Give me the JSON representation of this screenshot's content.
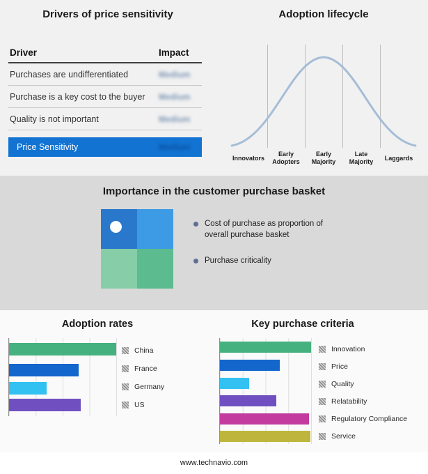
{
  "drivers_panel": {
    "title": "Drivers of price sensitivity",
    "table": {
      "headers": [
        "Driver",
        "Impact"
      ],
      "rows": [
        {
          "driver": "Purchases are undifferentiated",
          "impact": "Medium"
        },
        {
          "driver": "Purchase is a key cost to the buyer",
          "impact": "Medium"
        },
        {
          "driver": "Quality is not important",
          "impact": "Medium"
        }
      ],
      "highlight_row": {
        "driver": "Price Sensitivity",
        "impact": "Medium"
      },
      "highlight_color": "#1273d2",
      "impact_blurred": true
    }
  },
  "basket_panel": {
    "title": "Importance in the customer purchase basket",
    "bullets": [
      "Cost of purchase as proportion of overall purchase basket",
      "Purchase criticality"
    ],
    "quadrant_colors": [
      "#2a78cc",
      "#3d9be6",
      "#86cda8",
      "#5cbc90"
    ]
  },
  "chart_data": [
    {
      "type": "bar",
      "title": "Adoption rates",
      "orientation": "horizontal",
      "categories": [
        "China",
        "France",
        "Germany",
        "US"
      ],
      "values": [
        100,
        65,
        35,
        67
      ],
      "value_scale": "relative, percent of longest bar (no numeric axis labels shown)",
      "colors": [
        "#45b17e",
        "#1266cc",
        "#33c1f2",
        "#7050c0"
      ],
      "grid": true,
      "legend_position": "right"
    },
    {
      "type": "bar",
      "title": "Key purchase criteria",
      "orientation": "horizontal",
      "categories": [
        "Innovation",
        "Price",
        "Quality",
        "Relatability",
        "Regulatory Compliance",
        "Service"
      ],
      "values": [
        100,
        66,
        32,
        62,
        98,
        99
      ],
      "value_scale": "relative, percent of longest bar (no numeric axis labels shown)",
      "colors": [
        "#45b17e",
        "#1266cc",
        "#33c1f2",
        "#7050c0",
        "#c43ba0",
        "#beb63c"
      ],
      "grid": true,
      "legend_position": "right"
    },
    {
      "type": "line",
      "title": "Adoption lifecycle",
      "shape": "bell-curve",
      "categories": [
        "Innovators",
        "Early Adopters",
        "Early Majority",
        "Late Majority",
        "Laggards"
      ],
      "line_color": "#a5bdd6",
      "grid": "vertical segment separators"
    }
  ],
  "footer": {
    "url": "www.technavio.com"
  }
}
